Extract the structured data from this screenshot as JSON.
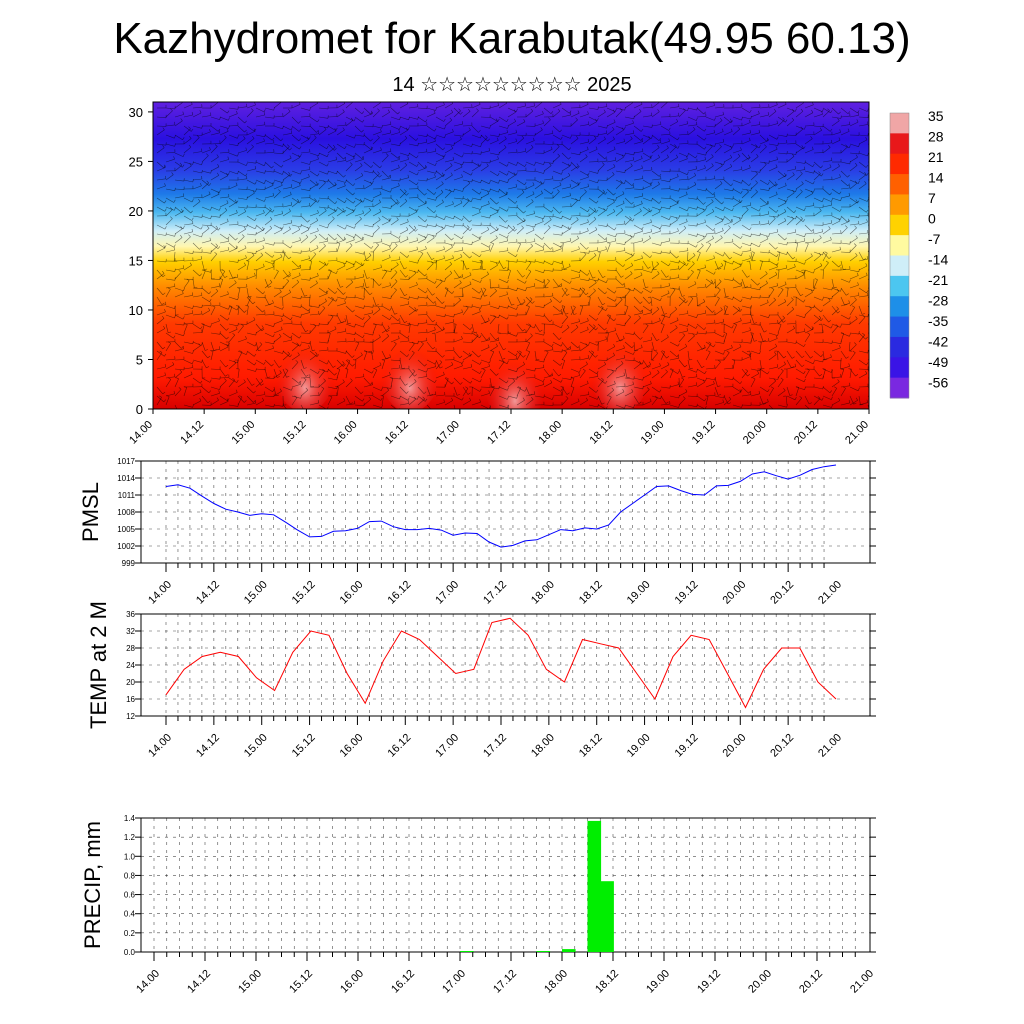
{
  "page": {
    "title": "Kazhydromet for Karabutak(49.95 60.13)",
    "subtitle": "14 ☆☆☆☆☆☆☆☆☆ 2025"
  },
  "chart_data": [
    {
      "type": "heatmap",
      "name": "vertical-section",
      "x_labels": [
        "14.00",
        "14.12",
        "15.00",
        "15.12",
        "16.00",
        "16.12",
        "17.00",
        "17.12",
        "18.00",
        "18.12",
        "19.00",
        "19.12",
        "20.00",
        "20.12",
        "21.00"
      ],
      "y_ticks": [
        0,
        5,
        10,
        15,
        20,
        25,
        30
      ],
      "ylim": [
        0,
        31
      ],
      "colorbar_labels": [
        "35",
        "28",
        "21",
        "14",
        "7",
        "0",
        "-7",
        "-14",
        "-21",
        "-28",
        "-35",
        "-42",
        "-49",
        "-56"
      ],
      "colorbar_colors": [
        "#f0a6a6",
        "#e8181a",
        "#ff2a00",
        "#ff6000",
        "#ff9a00",
        "#ffd200",
        "#fffaa0",
        "#cfeef8",
        "#4cc6f0",
        "#1e8fe8",
        "#1f5ae6",
        "#2a2ae0",
        "#3a14e6",
        "#7a28e0"
      ]
    },
    {
      "type": "line",
      "name": "pmsl",
      "ylabel": "PMSL",
      "ylim": [
        999,
        1017
      ],
      "y_ticks": [
        999,
        1002,
        1005,
        1008,
        1011,
        1014,
        1017
      ],
      "x_labels": [
        "14.00",
        "14.12",
        "15.00",
        "15.12",
        "16.00",
        "16.12",
        "17.00",
        "17.12",
        "18.00",
        "18.12",
        "19.00",
        "19.12",
        "20.00",
        "20.12",
        "21.00"
      ],
      "color": "#0000ff",
      "series": [
        {
          "values": [
            1012.5,
            1012.8,
            1012.2,
            1010.8,
            1009.5,
            1008.5,
            1008,
            1007.4,
            1007.7,
            1007.5,
            1006.2,
            1004.8,
            1003.6,
            1003.7,
            1004.6,
            1004.7,
            1005.1,
            1006.3,
            1006.4,
            1005.4,
            1004.9,
            1004.9,
            1005.1,
            1004.8,
            1003.9,
            1004.3,
            1004.2,
            1002.7,
            1001.8,
            1002.1,
            1002.9,
            1003.1,
            1004.0,
            1004.9,
            1004.7,
            1005.2,
            1005.0,
            1005.7,
            1008.0,
            1009.5,
            1011.0,
            1012.5,
            1012.6,
            1011.8,
            1011.1,
            1011.0,
            1012.6,
            1012.7,
            1013.4,
            1014.7,
            1015.1,
            1014.4,
            1013.8,
            1014.5,
            1015.5,
            1016.0,
            1016.3
          ]
        }
      ]
    },
    {
      "type": "line",
      "name": "temp2m",
      "ylabel": "TEMP at 2 M",
      "ylim": [
        12,
        36
      ],
      "y_ticks": [
        12,
        16,
        20,
        24,
        28,
        32,
        36
      ],
      "x_labels": [
        "14.00",
        "14.12",
        "15.00",
        "15.12",
        "16.00",
        "16.12",
        "17.00",
        "17.12",
        "18.00",
        "18.12",
        "19.00",
        "19.12",
        "20.00",
        "20.12",
        "21.00"
      ],
      "color": "#ff0000",
      "series": [
        {
          "values": [
            17,
            23,
            26,
            27,
            26,
            21,
            18,
            27,
            32,
            31,
            22,
            15,
            25,
            32,
            30,
            26,
            22,
            23,
            34,
            35,
            31,
            23,
            20,
            30,
            29,
            28,
            22,
            16,
            26,
            31,
            30,
            22,
            14,
            23,
            28,
            28,
            20,
            16
          ]
        }
      ]
    },
    {
      "type": "bar",
      "name": "precip",
      "ylabel": "PRECIP, mm",
      "ylim": [
        0,
        1.4
      ],
      "y_ticks": [
        "0.0",
        "0.2",
        "0.4",
        "0.6",
        "0.8",
        "1.0",
        "1.2",
        "1.4"
      ],
      "x_labels": [
        "14.00",
        "14.12",
        "15.00",
        "15.12",
        "16.00",
        "16.12",
        "17.00",
        "17.12",
        "18.00",
        "18.12",
        "19.00",
        "19.12",
        "20.00",
        "20.12",
        "21.00"
      ],
      "color": "#00ee00",
      "bar_hours": [
        72,
        90,
        96,
        102,
        105
      ],
      "values": [
        0.01,
        0.01,
        0.03,
        1.37,
        0.74
      ]
    }
  ]
}
